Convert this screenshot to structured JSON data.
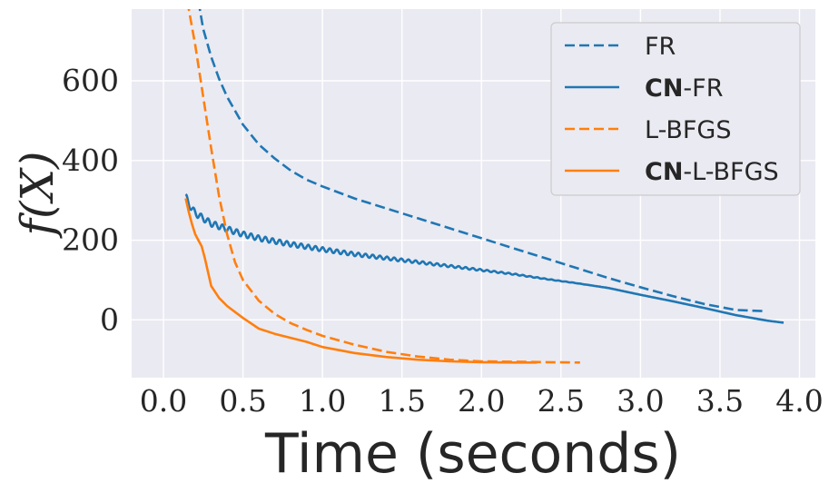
{
  "chart_data": {
    "type": "line",
    "xlabel": "Time (seconds)",
    "ylabel": "f(X)",
    "xlim": [
      -0.2,
      4.1
    ],
    "ylim": [
      -145,
      780
    ],
    "x_ticks": [
      0.0,
      0.5,
      1.0,
      1.5,
      2.0,
      2.5,
      3.0,
      3.5,
      4.0
    ],
    "x_tick_labels": [
      "0.0",
      "0.5",
      "1.0",
      "1.5",
      "2.0",
      "2.5",
      "3.0",
      "3.5",
      "4.0"
    ],
    "y_ticks": [
      0,
      200,
      400,
      600
    ],
    "y_tick_labels": [
      "0",
      "200",
      "400",
      "600"
    ],
    "grid": true,
    "legend_position": "top-right",
    "series": [
      {
        "name": "FR",
        "name_bold": "",
        "name_rest": "FR",
        "color": "#1f77b4",
        "dash": "dashed",
        "x": [
          0.22,
          0.25,
          0.3,
          0.35,
          0.4,
          0.5,
          0.6,
          0.7,
          0.8,
          0.9,
          1.0,
          1.2,
          1.4,
          1.6,
          1.8,
          2.0,
          2.2,
          2.4,
          2.6,
          2.8,
          3.0,
          3.2,
          3.4,
          3.6,
          3.78
        ],
        "y": [
          800,
          730,
          660,
          605,
          560,
          490,
          440,
          405,
          375,
          352,
          335,
          305,
          280,
          255,
          230,
          205,
          180,
          155,
          130,
          105,
          82,
          60,
          40,
          25,
          22
        ]
      },
      {
        "name": "CN-FR",
        "name_bold": "CN",
        "name_rest": "-FR",
        "color": "#1f77b4",
        "dash": "solid",
        "oscillate": true,
        "x": [
          0.14,
          0.16,
          0.2,
          0.25,
          0.3,
          0.4,
          0.5,
          0.6,
          0.8,
          1.0,
          1.2,
          1.4,
          1.6,
          1.8,
          2.0,
          2.2,
          2.4,
          2.6,
          2.8,
          3.0,
          3.2,
          3.4,
          3.6,
          3.8,
          3.9
        ],
        "y": [
          310,
          290,
          268,
          255,
          242,
          228,
          215,
          205,
          190,
          177,
          165,
          155,
          145,
          135,
          125,
          115,
          103,
          92,
          80,
          63,
          47,
          30,
          12,
          -2,
          -7
        ]
      },
      {
        "name": "L-BFGS",
        "name_bold": "",
        "name_rest": "L-BFGS",
        "color": "#ff7f0e",
        "dash": "dashed",
        "x": [
          0.15,
          0.2,
          0.25,
          0.3,
          0.35,
          0.4,
          0.45,
          0.5,
          0.6,
          0.7,
          0.8,
          0.9,
          1.0,
          1.2,
          1.4,
          1.6,
          1.8,
          2.0,
          2.2,
          2.4,
          2.62
        ],
        "y": [
          800,
          690,
          560,
          430,
          310,
          215,
          145,
          100,
          48,
          15,
          -8,
          -25,
          -40,
          -62,
          -80,
          -92,
          -100,
          -104,
          -105,
          -106,
          -107
        ]
      },
      {
        "name": "CN-L-BFGS",
        "name_bold": "CN",
        "name_rest": "-L-BFGS",
        "color": "#ff7f0e",
        "dash": "solid",
        "x": [
          0.14,
          0.16,
          0.18,
          0.2,
          0.22,
          0.24,
          0.26,
          0.28,
          0.3,
          0.35,
          0.4,
          0.5,
          0.6,
          0.7,
          0.8,
          0.9,
          1.0,
          1.2,
          1.4,
          1.6,
          1.8,
          2.0,
          2.2,
          2.35
        ],
        "y": [
          305,
          270,
          240,
          215,
          200,
          185,
          155,
          120,
          85,
          55,
          35,
          5,
          -22,
          -35,
          -45,
          -55,
          -68,
          -83,
          -93,
          -100,
          -104,
          -106,
          -107,
          -107
        ]
      }
    ]
  }
}
